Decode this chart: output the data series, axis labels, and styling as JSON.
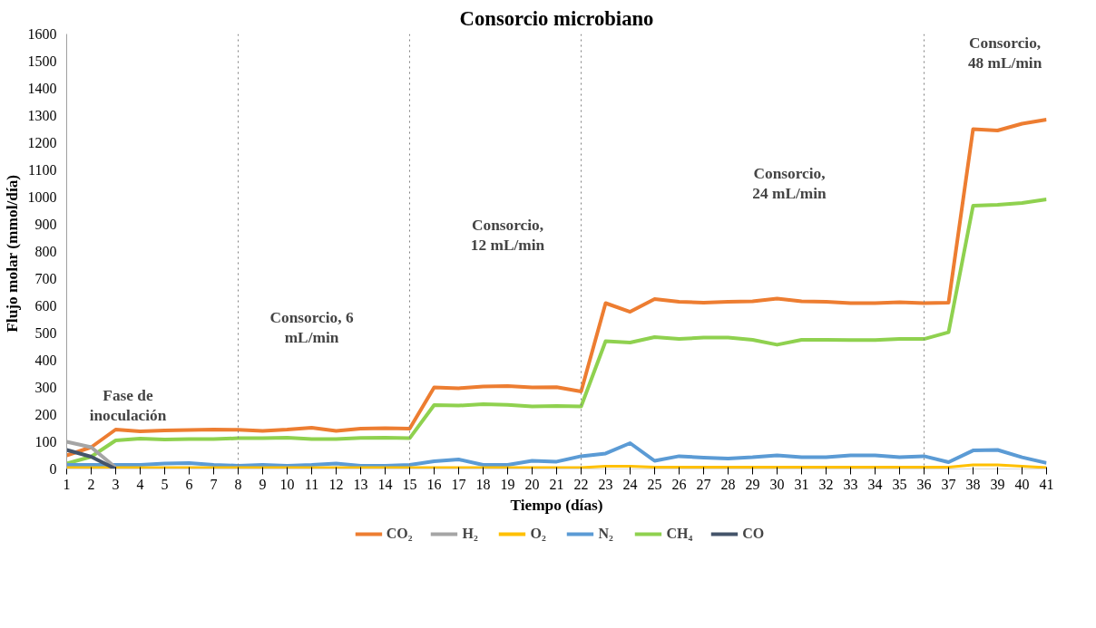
{
  "chart_data": {
    "type": "line",
    "title": "Consorcio microbiano",
    "xlabel": "Tiempo (días)",
    "ylabel": "Flujo  molar (mmol/día)",
    "x": [
      1,
      2,
      3,
      4,
      5,
      6,
      7,
      8,
      9,
      10,
      11,
      12,
      13,
      14,
      15,
      16,
      17,
      18,
      19,
      20,
      21,
      22,
      23,
      24,
      25,
      26,
      27,
      28,
      29,
      30,
      31,
      32,
      33,
      34,
      35,
      36,
      37,
      38,
      39,
      40,
      41
    ],
    "xlim": [
      1,
      41
    ],
    "xticks": [
      1,
      2,
      3,
      4,
      5,
      6,
      7,
      8,
      9,
      10,
      11,
      12,
      13,
      14,
      15,
      16,
      17,
      18,
      19,
      20,
      21,
      22,
      23,
      24,
      25,
      26,
      27,
      28,
      29,
      30,
      31,
      32,
      33,
      34,
      35,
      36,
      37,
      38,
      39,
      40,
      41
    ],
    "ylim": [
      0,
      1600
    ],
    "yticks": [
      0,
      100,
      200,
      300,
      400,
      500,
      600,
      700,
      800,
      900,
      1000,
      1100,
      1200,
      1300,
      1400,
      1500,
      1600
    ],
    "grid": false,
    "legend": "bottom",
    "marker": "none",
    "line_style": "solid",
    "series": [
      {
        "name": "CO₂",
        "color": "#ed7d31",
        "values": [
          50,
          80,
          145,
          138,
          142,
          143,
          145,
          144,
          140,
          145,
          152,
          140,
          148,
          150,
          148,
          300,
          297,
          303,
          305,
          300,
          301,
          285,
          610,
          578,
          625,
          615,
          612,
          615,
          617,
          627,
          617,
          615,
          610,
          610,
          613,
          610,
          612,
          1250,
          1245,
          1270,
          1285
        ]
      },
      {
        "name": "H₂",
        "color": "#a5a5a5",
        "x": [
          1,
          2,
          3
        ],
        "values": [
          100,
          80,
          5
        ]
      },
      {
        "name": "O₂",
        "color": "#ffc000",
        "values": [
          5,
          5,
          5,
          5,
          5,
          5,
          5,
          5,
          5,
          5,
          5,
          5,
          5,
          5,
          5,
          5,
          5,
          5,
          5,
          5,
          5,
          5,
          10,
          10,
          7,
          7,
          7,
          7,
          7,
          7,
          7,
          7,
          7,
          7,
          7,
          7,
          7,
          15,
          15,
          10,
          5
        ]
      },
      {
        "name": "N₂",
        "color": "#5b9bd5",
        "values": [
          15,
          15,
          15,
          15,
          20,
          22,
          15,
          12,
          15,
          12,
          15,
          20,
          12,
          12,
          15,
          28,
          35,
          15,
          15,
          30,
          27,
          47,
          57,
          95,
          30,
          47,
          42,
          38,
          43,
          50,
          43,
          43,
          50,
          50,
          43,
          47,
          25,
          68,
          70,
          43,
          22
        ]
      },
      {
        "name": "CH₄",
        "color": "#8fd14f",
        "values": [
          20,
          45,
          105,
          112,
          108,
          110,
          110,
          113,
          113,
          115,
          110,
          110,
          114,
          115,
          113,
          235,
          233,
          238,
          236,
          230,
          232,
          230,
          470,
          465,
          485,
          478,
          483,
          483,
          475,
          457,
          475,
          475,
          474,
          474,
          478,
          478,
          503,
          968,
          972,
          978,
          992
        ]
      },
      {
        "name": "CO",
        "color": "#44546a",
        "x": [
          1,
          2,
          3
        ],
        "values": [
          70,
          45,
          0
        ]
      }
    ],
    "ref_lines": [
      {
        "axis": "x",
        "value": 8,
        "color": "#7f7f7f",
        "line_style": "dotted"
      },
      {
        "axis": "x",
        "value": 15,
        "color": "#7f7f7f",
        "line_style": "dotted"
      },
      {
        "axis": "x",
        "value": 22,
        "color": "#7f7f7f",
        "line_style": "dotted"
      },
      {
        "axis": "x",
        "value": 36,
        "color": "#7f7f7f",
        "line_style": "dotted"
      }
    ],
    "annotations": [
      "Fase de\ninoculación",
      "Consorcio, 6\nmL/min",
      "Consorcio,\n12 mL/min",
      "Consorcio,\n24 mL/min",
      "Consorcio,\n48 mL/min"
    ]
  }
}
